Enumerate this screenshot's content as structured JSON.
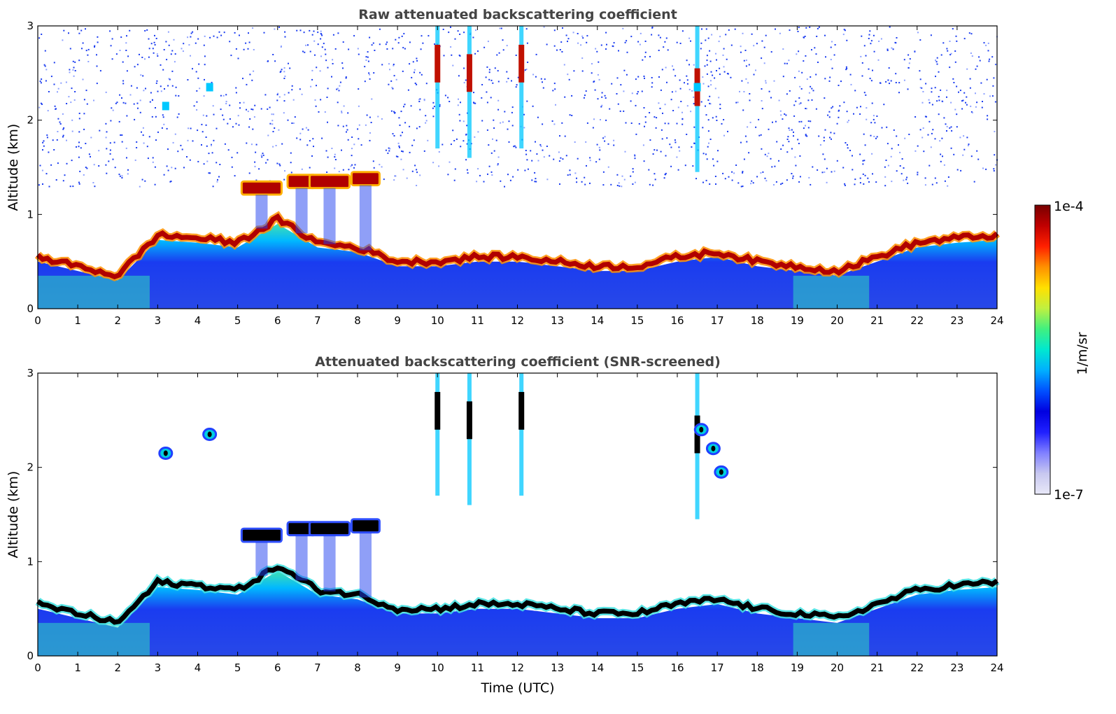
{
  "chart_data": [
    {
      "type": "heatmap",
      "title": "Raw attenuated backscattering coefficient",
      "xlabel": "",
      "ylabel": "Altitude (km)",
      "xlim": [
        0,
        24
      ],
      "ylim": [
        0,
        3
      ],
      "xticks": [
        0,
        1,
        2,
        3,
        4,
        5,
        6,
        7,
        8,
        9,
        10,
        11,
        12,
        13,
        14,
        15,
        16,
        17,
        18,
        19,
        20,
        21,
        22,
        23,
        24
      ],
      "yticks": [
        0,
        1,
        2,
        3
      ],
      "colorscale": "log",
      "layers": {
        "boundary_layer_top_km": [
          [
            0,
            0.55
          ],
          [
            1,
            0.45
          ],
          [
            2,
            0.35
          ],
          [
            3,
            0.78
          ],
          [
            4,
            0.75
          ],
          [
            5,
            0.7
          ],
          [
            6,
            0.95
          ],
          [
            7,
            0.7
          ],
          [
            8,
            0.65
          ],
          [
            9,
            0.5
          ],
          [
            10,
            0.5
          ],
          [
            11,
            0.55
          ],
          [
            12,
            0.55
          ],
          [
            13,
            0.5
          ],
          [
            14,
            0.45
          ],
          [
            15,
            0.45
          ],
          [
            16,
            0.55
          ],
          [
            17,
            0.6
          ],
          [
            18,
            0.5
          ],
          [
            19,
            0.45
          ],
          [
            20,
            0.4
          ],
          [
            21,
            0.55
          ],
          [
            22,
            0.7
          ],
          [
            23,
            0.75
          ],
          [
            24,
            0.78
          ]
        ],
        "elevated_cloud_km": [
          [
            5.6,
            1.28
          ],
          [
            6.6,
            1.35
          ],
          [
            7.3,
            1.35
          ],
          [
            8.2,
            1.38
          ]
        ],
        "upper_cloud_km": [
          [
            10,
            2.6
          ],
          [
            10.8,
            2.5
          ],
          [
            12.1,
            2.6
          ],
          [
            16.5,
            2.35
          ]
        ]
      }
    },
    {
      "type": "heatmap",
      "title": "Attenuated backscattering coefficient (SNR-screened)",
      "xlabel": "Time (UTC)",
      "ylabel": "Altitude (km)",
      "xlim": [
        0,
        24
      ],
      "ylim": [
        0,
        3
      ],
      "xticks": [
        0,
        1,
        2,
        3,
        4,
        5,
        6,
        7,
        8,
        9,
        10,
        11,
        12,
        13,
        14,
        15,
        16,
        17,
        18,
        19,
        20,
        21,
        22,
        23,
        24
      ],
      "yticks": [
        0,
        1,
        2,
        3
      ],
      "colorscale": "log",
      "screened_patches_km": [
        [
          3.2,
          2.15
        ],
        [
          4.3,
          2.35
        ],
        [
          16.6,
          2.4
        ],
        [
          16.9,
          2.2
        ],
        [
          17.1,
          1.95
        ]
      ]
    }
  ],
  "colorbar": {
    "label": "1/m/sr",
    "max_label": "1e-4",
    "min_label": "1e-7",
    "colors": [
      "#e8e8f8",
      "#c8c8f0",
      "#8080ff",
      "#2020ff",
      "#0000e0",
      "#0050ff",
      "#00b0ff",
      "#00e8d0",
      "#40f080",
      "#c0f040",
      "#ffe000",
      "#ff9000",
      "#ff2000",
      "#c00000",
      "#780000"
    ]
  }
}
